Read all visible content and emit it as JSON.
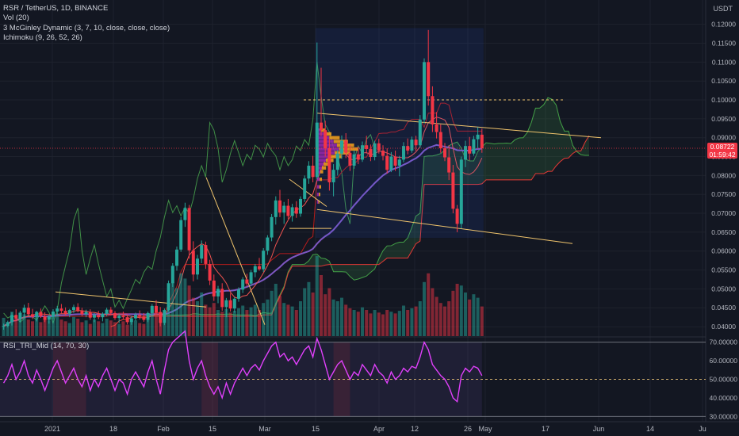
{
  "legend": {
    "symbol": "RSR / TetherUS, 1D, BINANCE",
    "vol": "Vol (20)",
    "mcginley": "3 McGinley Dynamic (3, 7, 10, close, close, close)",
    "ichimoku": "Ichimoku (9, 26, 52, 26)",
    "rsi": "RSI_TRI_Mid (14, 70, 30)"
  },
  "price_axis": {
    "unit": "USDT",
    "ticks": [
      "0.12000",
      "0.11500",
      "0.11000",
      "0.10500",
      "0.10000",
      "0.09500",
      "0.09000",
      "0.08500",
      "0.08000",
      "0.07500",
      "0.07000",
      "0.06500",
      "0.06000",
      "0.05500",
      "0.05000",
      "0.04500",
      "0.04000"
    ]
  },
  "rsi_axis": {
    "ticks": [
      "70.00000",
      "60.00000",
      "50.00000",
      "40.00000",
      "30.00000"
    ]
  },
  "time_axis": {
    "ticks": [
      "2021",
      "18",
      "Feb",
      "15",
      "Mar",
      "15",
      "Apr",
      "12",
      "26",
      "May",
      "17",
      "Jun",
      "14",
      "Ju"
    ]
  },
  "current_price": {
    "value": "0.08722",
    "countdown": "01:59:42",
    "color": "#f23645"
  },
  "colors": {
    "up": "#26a69a",
    "down": "#f23645",
    "background": "#131722",
    "rsi": "#e040fb",
    "mcginley": "#7e57c2",
    "trend": "#f0c46c",
    "profile_up": "#f7a21b",
    "profile_poc": "#9c27b0"
  },
  "chart_data": {
    "type": "candlestick",
    "title": "RSR / TetherUS, 1D, BINANCE",
    "ylim": [
      0.0375,
      0.1235
    ],
    "rsi_ylim": [
      28,
      72
    ],
    "rsi_levels": [
      70,
      50,
      30
    ],
    "candles": [
      {
        "o": 0.04,
        "h": 0.0408,
        "l": 0.0392,
        "c": 0.0402
      },
      {
        "o": 0.0402,
        "h": 0.0416,
        "l": 0.0398,
        "c": 0.0412
      },
      {
        "o": 0.0412,
        "h": 0.0438,
        "l": 0.0403,
        "c": 0.0431
      },
      {
        "o": 0.0431,
        "h": 0.0446,
        "l": 0.0417,
        "c": 0.0421
      },
      {
        "o": 0.0421,
        "h": 0.0442,
        "l": 0.0413,
        "c": 0.0437
      },
      {
        "o": 0.0437,
        "h": 0.0458,
        "l": 0.0426,
        "c": 0.045
      },
      {
        "o": 0.045,
        "h": 0.0463,
        "l": 0.0428,
        "c": 0.0433
      },
      {
        "o": 0.0433,
        "h": 0.0447,
        "l": 0.042,
        "c": 0.0426
      },
      {
        "o": 0.0426,
        "h": 0.0442,
        "l": 0.0414,
        "c": 0.0439
      },
      {
        "o": 0.0439,
        "h": 0.0448,
        "l": 0.0423,
        "c": 0.0428
      },
      {
        "o": 0.0428,
        "h": 0.0438,
        "l": 0.0412,
        "c": 0.0418
      },
      {
        "o": 0.0418,
        "h": 0.0432,
        "l": 0.0408,
        "c": 0.0427
      },
      {
        "o": 0.0427,
        "h": 0.0446,
        "l": 0.042,
        "c": 0.044
      },
      {
        "o": 0.044,
        "h": 0.0455,
        "l": 0.0431,
        "c": 0.0448
      },
      {
        "o": 0.0448,
        "h": 0.046,
        "l": 0.0436,
        "c": 0.0442
      },
      {
        "o": 0.0442,
        "h": 0.0451,
        "l": 0.043,
        "c": 0.0434
      },
      {
        "o": 0.0434,
        "h": 0.0447,
        "l": 0.0425,
        "c": 0.0444
      },
      {
        "o": 0.0444,
        "h": 0.0458,
        "l": 0.0436,
        "c": 0.0452
      },
      {
        "o": 0.0452,
        "h": 0.0462,
        "l": 0.0438,
        "c": 0.0441
      },
      {
        "o": 0.0441,
        "h": 0.045,
        "l": 0.0428,
        "c": 0.0433
      },
      {
        "o": 0.0433,
        "h": 0.0445,
        "l": 0.0425,
        "c": 0.0439
      },
      {
        "o": 0.0439,
        "h": 0.0446,
        "l": 0.0418,
        "c": 0.0424
      },
      {
        "o": 0.0424,
        "h": 0.0436,
        "l": 0.0412,
        "c": 0.0431
      },
      {
        "o": 0.0431,
        "h": 0.0442,
        "l": 0.042,
        "c": 0.0425
      },
      {
        "o": 0.0425,
        "h": 0.0438,
        "l": 0.0414,
        "c": 0.0434
      },
      {
        "o": 0.0434,
        "h": 0.045,
        "l": 0.0428,
        "c": 0.0445
      },
      {
        "o": 0.0445,
        "h": 0.0452,
        "l": 0.043,
        "c": 0.0436
      },
      {
        "o": 0.0436,
        "h": 0.0441,
        "l": 0.0418,
        "c": 0.0423
      },
      {
        "o": 0.0423,
        "h": 0.0435,
        "l": 0.041,
        "c": 0.0429
      },
      {
        "o": 0.0429,
        "h": 0.044,
        "l": 0.042,
        "c": 0.0425
      },
      {
        "o": 0.0425,
        "h": 0.0433,
        "l": 0.0406,
        "c": 0.0412
      },
      {
        "o": 0.0412,
        "h": 0.0428,
        "l": 0.0405,
        "c": 0.0422
      },
      {
        "o": 0.0422,
        "h": 0.0437,
        "l": 0.0416,
        "c": 0.0431
      },
      {
        "o": 0.0431,
        "h": 0.0443,
        "l": 0.0419,
        "c": 0.0426
      },
      {
        "o": 0.0426,
        "h": 0.0436,
        "l": 0.0413,
        "c": 0.0418
      },
      {
        "o": 0.0418,
        "h": 0.044,
        "l": 0.0412,
        "c": 0.0436
      },
      {
        "o": 0.0436,
        "h": 0.046,
        "l": 0.043,
        "c": 0.0455
      },
      {
        "o": 0.0455,
        "h": 0.047,
        "l": 0.0432,
        "c": 0.0438
      },
      {
        "o": 0.0438,
        "h": 0.0452,
        "l": 0.0401,
        "c": 0.041
      },
      {
        "o": 0.041,
        "h": 0.0448,
        "l": 0.0404,
        "c": 0.0444
      },
      {
        "o": 0.0444,
        "h": 0.0522,
        "l": 0.044,
        "c": 0.0515
      },
      {
        "o": 0.0515,
        "h": 0.0568,
        "l": 0.0505,
        "c": 0.0561
      },
      {
        "o": 0.0561,
        "h": 0.0612,
        "l": 0.0548,
        "c": 0.0604
      },
      {
        "o": 0.0604,
        "h": 0.069,
        "l": 0.0598,
        "c": 0.0682
      },
      {
        "o": 0.0682,
        "h": 0.0728,
        "l": 0.0664,
        "c": 0.0714
      },
      {
        "o": 0.0714,
        "h": 0.0722,
        "l": 0.058,
        "c": 0.0602
      },
      {
        "o": 0.0602,
        "h": 0.0626,
        "l": 0.052,
        "c": 0.0538
      },
      {
        "o": 0.0538,
        "h": 0.059,
        "l": 0.0525,
        "c": 0.058
      },
      {
        "o": 0.058,
        "h": 0.0628,
        "l": 0.0568,
        "c": 0.0616
      },
      {
        "o": 0.0616,
        "h": 0.0625,
        "l": 0.0553,
        "c": 0.0566
      },
      {
        "o": 0.0566,
        "h": 0.0577,
        "l": 0.051,
        "c": 0.0522
      },
      {
        "o": 0.0522,
        "h": 0.0538,
        "l": 0.0468,
        "c": 0.048
      },
      {
        "o": 0.048,
        "h": 0.0508,
        "l": 0.0462,
        "c": 0.05
      },
      {
        "o": 0.05,
        "h": 0.0515,
        "l": 0.0442,
        "c": 0.0452
      },
      {
        "o": 0.0452,
        "h": 0.0476,
        "l": 0.0425,
        "c": 0.047
      },
      {
        "o": 0.047,
        "h": 0.0488,
        "l": 0.044,
        "c": 0.0448
      },
      {
        "o": 0.0448,
        "h": 0.0478,
        "l": 0.0437,
        "c": 0.0474
      },
      {
        "o": 0.0474,
        "h": 0.0504,
        "l": 0.0466,
        "c": 0.0498
      },
      {
        "o": 0.0498,
        "h": 0.0531,
        "l": 0.0489,
        "c": 0.0525
      },
      {
        "o": 0.0525,
        "h": 0.054,
        "l": 0.0506,
        "c": 0.0514
      },
      {
        "o": 0.0514,
        "h": 0.055,
        "l": 0.0508,
        "c": 0.0544
      },
      {
        "o": 0.0544,
        "h": 0.0566,
        "l": 0.0531,
        "c": 0.056
      },
      {
        "o": 0.056,
        "h": 0.0582,
        "l": 0.0548,
        "c": 0.0552
      },
      {
        "o": 0.0552,
        "h": 0.0608,
        "l": 0.0545,
        "c": 0.0601
      },
      {
        "o": 0.0601,
        "h": 0.0642,
        "l": 0.059,
        "c": 0.0636
      },
      {
        "o": 0.0636,
        "h": 0.0698,
        "l": 0.0626,
        "c": 0.069
      },
      {
        "o": 0.069,
        "h": 0.0745,
        "l": 0.067,
        "c": 0.0734
      },
      {
        "o": 0.0734,
        "h": 0.0762,
        "l": 0.069,
        "c": 0.0702
      },
      {
        "o": 0.0702,
        "h": 0.073,
        "l": 0.0672,
        "c": 0.072
      },
      {
        "o": 0.072,
        "h": 0.0738,
        "l": 0.0685,
        "c": 0.0693
      },
      {
        "o": 0.0693,
        "h": 0.0725,
        "l": 0.0678,
        "c": 0.0716
      },
      {
        "o": 0.0716,
        "h": 0.0732,
        "l": 0.0688,
        "c": 0.0699
      },
      {
        "o": 0.0699,
        "h": 0.0745,
        "l": 0.0691,
        "c": 0.0738
      },
      {
        "o": 0.0738,
        "h": 0.08,
        "l": 0.073,
        "c": 0.0792
      },
      {
        "o": 0.0792,
        "h": 0.0838,
        "l": 0.0778,
        "c": 0.0826
      },
      {
        "o": 0.0826,
        "h": 0.0852,
        "l": 0.0782,
        "c": 0.0796
      },
      {
        "o": 0.0796,
        "h": 0.1152,
        "l": 0.079,
        "c": 0.094
      },
      {
        "o": 0.094,
        "h": 0.1085,
        "l": 0.0905,
        "c": 0.092
      },
      {
        "o": 0.092,
        "h": 0.0945,
        "l": 0.085,
        "c": 0.0872
      },
      {
        "o": 0.0872,
        "h": 0.0898,
        "l": 0.076,
        "c": 0.0782
      },
      {
        "o": 0.0782,
        "h": 0.083,
        "l": 0.0745,
        "c": 0.0815
      },
      {
        "o": 0.0815,
        "h": 0.0868,
        "l": 0.08,
        "c": 0.0858
      },
      {
        "o": 0.0858,
        "h": 0.0906,
        "l": 0.0844,
        "c": 0.0892
      },
      {
        "o": 0.0892,
        "h": 0.0912,
        "l": 0.0846,
        "c": 0.086
      },
      {
        "o": 0.086,
        "h": 0.088,
        "l": 0.0812,
        "c": 0.0826
      },
      {
        "o": 0.0826,
        "h": 0.0866,
        "l": 0.0818,
        "c": 0.0856
      },
      {
        "o": 0.0856,
        "h": 0.0876,
        "l": 0.083,
        "c": 0.0842
      },
      {
        "o": 0.0842,
        "h": 0.089,
        "l": 0.0836,
        "c": 0.088
      },
      {
        "o": 0.088,
        "h": 0.0905,
        "l": 0.0858,
        "c": 0.087
      },
      {
        "o": 0.087,
        "h": 0.0882,
        "l": 0.0838,
        "c": 0.0849
      },
      {
        "o": 0.0849,
        "h": 0.0892,
        "l": 0.084,
        "c": 0.0885
      },
      {
        "o": 0.0885,
        "h": 0.0897,
        "l": 0.0858,
        "c": 0.0866
      },
      {
        "o": 0.0866,
        "h": 0.088,
        "l": 0.084,
        "c": 0.0852
      },
      {
        "o": 0.0852,
        "h": 0.0872,
        "l": 0.0805,
        "c": 0.0815
      },
      {
        "o": 0.0815,
        "h": 0.0862,
        "l": 0.0809,
        "c": 0.085
      },
      {
        "o": 0.085,
        "h": 0.0866,
        "l": 0.0812,
        "c": 0.0826
      },
      {
        "o": 0.0826,
        "h": 0.0852,
        "l": 0.0798,
        "c": 0.0842
      },
      {
        "o": 0.0842,
        "h": 0.0888,
        "l": 0.0835,
        "c": 0.0878
      },
      {
        "o": 0.0878,
        "h": 0.0898,
        "l": 0.0856,
        "c": 0.0866
      },
      {
        "o": 0.0866,
        "h": 0.0903,
        "l": 0.086,
        "c": 0.0895
      },
      {
        "o": 0.0895,
        "h": 0.0905,
        "l": 0.0865,
        "c": 0.088
      },
      {
        "o": 0.088,
        "h": 0.096,
        "l": 0.0873,
        "c": 0.0948
      },
      {
        "o": 0.0948,
        "h": 0.111,
        "l": 0.0938,
        "c": 0.11
      },
      {
        "o": 0.11,
        "h": 0.1185,
        "l": 0.0985,
        "c": 0.101
      },
      {
        "o": 0.101,
        "h": 0.1036,
        "l": 0.0915,
        "c": 0.0935
      },
      {
        "o": 0.0935,
        "h": 0.0968,
        "l": 0.0898,
        "c": 0.0915
      },
      {
        "o": 0.0915,
        "h": 0.0935,
        "l": 0.086,
        "c": 0.0872
      },
      {
        "o": 0.0872,
        "h": 0.0886,
        "l": 0.0838,
        "c": 0.0848
      },
      {
        "o": 0.0848,
        "h": 0.088,
        "l": 0.0788,
        "c": 0.0808
      },
      {
        "o": 0.0808,
        "h": 0.0828,
        "l": 0.07,
        "c": 0.0712
      },
      {
        "o": 0.0712,
        "h": 0.0722,
        "l": 0.065,
        "c": 0.0672
      },
      {
        "o": 0.0672,
        "h": 0.085,
        "l": 0.066,
        "c": 0.0842
      },
      {
        "o": 0.0842,
        "h": 0.0892,
        "l": 0.0822,
        "c": 0.0878
      },
      {
        "o": 0.0878,
        "h": 0.0902,
        "l": 0.084,
        "c": 0.0858
      },
      {
        "o": 0.0858,
        "h": 0.0905,
        "l": 0.0852,
        "c": 0.0896
      },
      {
        "o": 0.0896,
        "h": 0.0928,
        "l": 0.0872,
        "c": 0.0908
      },
      {
        "o": 0.0908,
        "h": 0.0924,
        "l": 0.086,
        "c": 0.0872
      }
    ],
    "volume": [
      0.21,
      0.16,
      0.28,
      0.18,
      0.22,
      0.25,
      0.19,
      0.17,
      0.24,
      0.16,
      0.2,
      0.18,
      0.23,
      0.26,
      0.19,
      0.17,
      0.15,
      0.22,
      0.2,
      0.16,
      0.18,
      0.14,
      0.19,
      0.17,
      0.15,
      0.2,
      0.18,
      0.16,
      0.14,
      0.17,
      0.13,
      0.16,
      0.18,
      0.15,
      0.14,
      0.2,
      0.3,
      0.34,
      0.28,
      0.24,
      0.5,
      0.62,
      0.55,
      0.72,
      0.66,
      0.58,
      0.44,
      0.4,
      0.5,
      0.36,
      0.33,
      0.38,
      0.3,
      0.28,
      0.31,
      0.27,
      0.29,
      0.32,
      0.35,
      0.3,
      0.33,
      0.36,
      0.3,
      0.38,
      0.42,
      0.52,
      0.6,
      0.46,
      0.38,
      0.36,
      0.34,
      0.3,
      0.4,
      0.55,
      0.62,
      0.5,
      0.92,
      0.7,
      0.48,
      0.55,
      0.42,
      0.4,
      0.44,
      0.36,
      0.32,
      0.3,
      0.28,
      0.33,
      0.3,
      0.26,
      0.3,
      0.27,
      0.25,
      0.3,
      0.28,
      0.26,
      0.29,
      0.35,
      0.3,
      0.32,
      0.34,
      0.4,
      0.62,
      0.72,
      0.55,
      0.45,
      0.38,
      0.34,
      0.4,
      0.52,
      0.6,
      0.58,
      0.5,
      0.42,
      0.48,
      0.44,
      0.34
    ],
    "rsi": [
      48,
      52,
      58,
      50,
      54,
      60,
      52,
      48,
      55,
      50,
      44,
      50,
      56,
      60,
      54,
      48,
      52,
      56,
      50,
      46,
      52,
      44,
      50,
      46,
      52,
      56,
      50,
      44,
      50,
      48,
      42,
      50,
      54,
      50,
      46,
      54,
      60,
      50,
      42,
      55,
      66,
      70,
      72,
      74,
      76,
      60,
      50,
      56,
      60,
      52,
      46,
      42,
      46,
      40,
      48,
      42,
      48,
      52,
      56,
      52,
      56,
      58,
      55,
      60,
      64,
      68,
      70,
      62,
      64,
      60,
      62,
      58,
      62,
      66,
      68,
      62,
      72,
      66,
      58,
      50,
      54,
      58,
      60,
      55,
      50,
      54,
      52,
      58,
      55,
      52,
      58,
      54,
      52,
      48,
      54,
      50,
      52,
      56,
      54,
      57,
      56,
      62,
      70,
      66,
      58,
      55,
      52,
      50,
      46,
      40,
      38,
      52,
      56,
      54,
      57,
      56,
      52
    ]
  }
}
